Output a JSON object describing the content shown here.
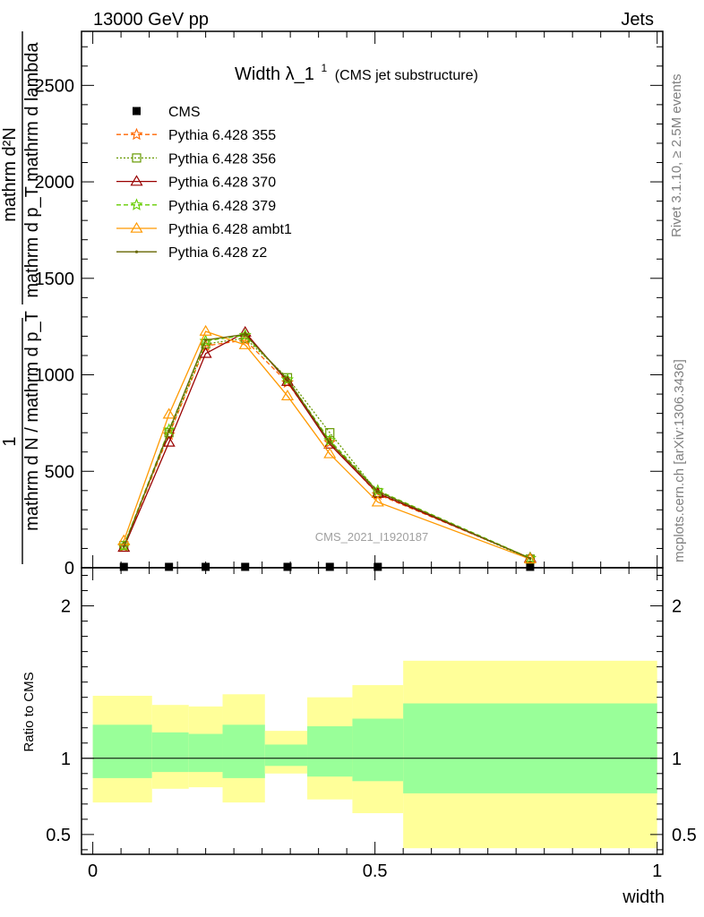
{
  "header": {
    "left": "13000 GeV pp",
    "right": "Jets"
  },
  "side_text": {
    "rivet": "Rivet 3.1.10, ≥ 2.5M events",
    "mcplots": "mcplots.cern.ch [arXiv:1306.3436]"
  },
  "chart_data": [
    {
      "type": "line",
      "title": "Width λ_1",
      "title_superscript": "1",
      "subtitle": "(CMS jet substructure)",
      "watermark": "CMS_2021_I1920187",
      "ylabel": {
        "left_fraction_numerator": "1",
        "left_fraction_denominator": "mathrm d N / mathrm d p_T",
        "right_fraction_numerator": "mathrm d²N",
        "right_fraction_denominator": "mathrm d p_T mathrm d lambda"
      },
      "xlim": [
        -0.02,
        1.01
      ],
      "ylim": [
        0,
        2780
      ],
      "yticks": [
        0,
        500,
        1000,
        1500,
        2000,
        2500
      ],
      "ytick_labels": [
        "0",
        "500",
        "1000",
        "1500",
        "2000",
        "2500"
      ],
      "legend_position": "top-left",
      "series": [
        {
          "name": "CMS",
          "color": "#000000",
          "marker": "square",
          "dash": "none",
          "x": [
            0.055,
            0.135,
            0.2,
            0.27,
            0.345,
            0.42,
            0.505,
            0.775
          ],
          "y": [
            0,
            0,
            0,
            0,
            0,
            0,
            0,
            0
          ]
        },
        {
          "name": "Pythia 6.428 355",
          "color": "#ff6600",
          "marker": "star",
          "dash": "5,3",
          "x": [
            0.055,
            0.135,
            0.2,
            0.27,
            0.345,
            0.42,
            0.505,
            0.775
          ],
          "y": [
            110,
            690,
            1150,
            1180,
            960,
            650,
            380,
            50
          ]
        },
        {
          "name": "Pythia 6.428 356",
          "color": "#669900",
          "marker": "square-open",
          "dash": "2,2",
          "x": [
            0.055,
            0.135,
            0.2,
            0.27,
            0.345,
            0.42,
            0.505,
            0.775
          ],
          "y": [
            115,
            700,
            1160,
            1190,
            985,
            700,
            390,
            45
          ]
        },
        {
          "name": "Pythia 6.428 370",
          "color": "#990000",
          "marker": "triangle-open",
          "dash": "none",
          "x": [
            0.055,
            0.135,
            0.2,
            0.27,
            0.345,
            0.42,
            0.505,
            0.775
          ],
          "y": [
            105,
            650,
            1110,
            1220,
            965,
            640,
            385,
            50
          ]
        },
        {
          "name": "Pythia 6.428 379",
          "color": "#66cc00",
          "marker": "star",
          "dash": "5,3",
          "x": [
            0.055,
            0.135,
            0.2,
            0.27,
            0.345,
            0.42,
            0.505,
            0.775
          ],
          "y": [
            115,
            715,
            1175,
            1205,
            975,
            660,
            400,
            50
          ]
        },
        {
          "name": "Pythia 6.428 ambt1",
          "color": "#ff9900",
          "marker": "triangle-open",
          "dash": "none",
          "x": [
            0.055,
            0.135,
            0.2,
            0.27,
            0.345,
            0.42,
            0.505,
            0.775
          ],
          "y": [
            140,
            795,
            1225,
            1155,
            890,
            590,
            340,
            45
          ]
        },
        {
          "name": "Pythia 6.428 z2",
          "color": "#666600",
          "marker": "dot",
          "dash": "none",
          "x": [
            0.055,
            0.135,
            0.2,
            0.27,
            0.345,
            0.42,
            0.505,
            0.775
          ],
          "y": [
            110,
            710,
            1180,
            1210,
            975,
            650,
            395,
            48
          ]
        }
      ]
    },
    {
      "type": "area",
      "ylabel": "Ratio to CMS",
      "xlabel": "width",
      "xlim": [
        -0.02,
        1.01
      ],
      "ylim": [
        0.37,
        2.25
      ],
      "yticks": [
        0.5,
        1,
        2
      ],
      "ytick_labels": [
        "0.5",
        "1",
        "2"
      ],
      "xticks": [
        0,
        0.5,
        1
      ],
      "xtick_labels": [
        "0",
        "0.5",
        "1"
      ],
      "reference_line": 1,
      "bins": [
        {
          "x0": 0.0,
          "x1": 0.105,
          "yellow": [
            0.71,
            1.41
          ],
          "green": [
            0.87,
            1.22
          ]
        },
        {
          "x0": 0.105,
          "x1": 0.17,
          "yellow": [
            0.8,
            1.35
          ],
          "green": [
            0.91,
            1.17
          ]
        },
        {
          "x0": 0.17,
          "x1": 0.23,
          "yellow": [
            0.81,
            1.34
          ],
          "green": [
            0.91,
            1.16
          ]
        },
        {
          "x0": 0.23,
          "x1": 0.305,
          "yellow": [
            0.71,
            1.42
          ],
          "green": [
            0.87,
            1.22
          ]
        },
        {
          "x0": 0.305,
          "x1": 0.38,
          "yellow": [
            0.9,
            1.18
          ],
          "green": [
            0.95,
            1.09
          ]
        },
        {
          "x0": 0.38,
          "x1": 0.46,
          "yellow": [
            0.73,
            1.4
          ],
          "green": [
            0.88,
            1.21
          ]
        },
        {
          "x0": 0.46,
          "x1": 0.55,
          "yellow": [
            0.64,
            1.48
          ],
          "green": [
            0.85,
            1.26
          ]
        },
        {
          "x0": 0.55,
          "x1": 1.0,
          "yellow": [
            0.41,
            1.64
          ],
          "green": [
            0.77,
            1.36
          ]
        }
      ],
      "band_colors": {
        "yellow": "#ffff99",
        "green": "#99ff99"
      }
    }
  ]
}
